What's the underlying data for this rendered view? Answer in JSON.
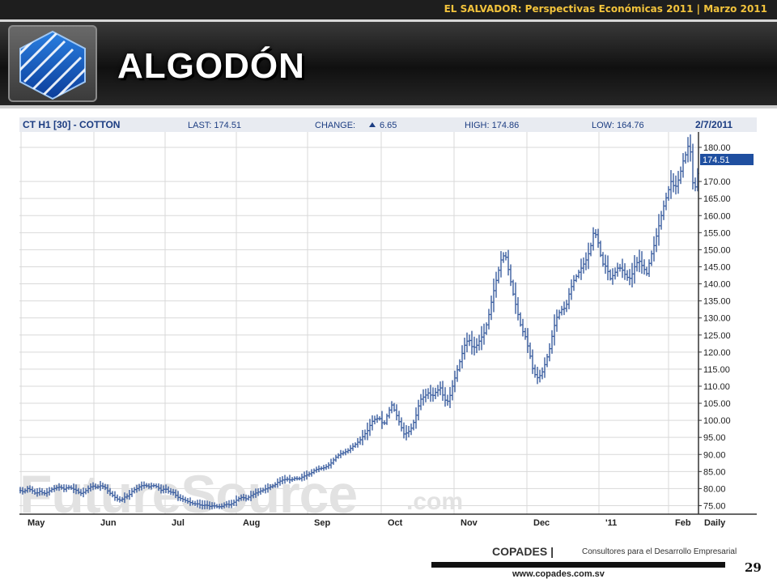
{
  "header": {
    "subtitle": "EL SALVADOR: Perspectivas Económicas 2011 | Marzo 2011"
  },
  "slide": {
    "title": "ALGODÓN",
    "page_number": "29"
  },
  "footer": {
    "brand": "COPADES |",
    "tagline": "Consultores para el Desarrollo Empresarial",
    "url": "www.copades.com.sv"
  },
  "colors": {
    "series": "#3a5d9f",
    "header_text": "#1c3d82",
    "title": "#ffffff",
    "accent": "#f2c33c"
  },
  "chart_header": {
    "symbol": "CT H1 [30] - COTTON",
    "last": "LAST: 174.51",
    "change": "CHANGE:",
    "change_value": "6.65",
    "high": "HIGH: 174.86",
    "low": "LOW: 164.76",
    "date": "2/7/2011"
  },
  "watermark": {
    "text": "FutureSource",
    "suffix": ".com"
  },
  "chart_data": {
    "type": "line",
    "title": "CT H1 [30] - COTTON",
    "interval": "Daily",
    "x_labels": [
      "May",
      "Jun",
      "Jul",
      "Aug",
      "Sep",
      "Oct",
      "Nov",
      "Dec",
      "'11",
      "Feb",
      "Daily"
    ],
    "y_ticks": [
      "180.00",
      "170.00",
      "165.00",
      "160.00",
      "155.00",
      "150.00",
      "145.00",
      "140.00",
      "135.00",
      "130.00",
      "125.00",
      "120.00",
      "115.00",
      "110.00",
      "105.00",
      "100.00",
      "95.00",
      "90.00",
      "85.00",
      "80.00",
      "75.00"
    ],
    "ylim": [
      72.5,
      184.5
    ],
    "last_price_label": "174.51",
    "grid": true,
    "series": [
      {
        "values": [
          [
            0,
            79.5
          ],
          [
            5,
            79.0
          ],
          [
            10,
            80.0
          ],
          [
            15,
            79.5
          ],
          [
            20,
            78.5
          ],
          [
            25,
            79.2
          ],
          [
            30,
            78.5
          ],
          [
            35,
            79.0
          ],
          [
            40,
            79.8
          ],
          [
            45,
            80.2
          ],
          [
            50,
            80.5
          ],
          [
            55,
            79.8
          ],
          [
            60,
            80.5
          ],
          [
            65,
            80.0
          ],
          [
            70,
            79.5
          ],
          [
            75,
            78.5
          ],
          [
            80,
            79.0
          ],
          [
            85,
            80.0
          ],
          [
            90,
            80.8
          ],
          [
            95,
            80.3
          ],
          [
            100,
            80.8
          ],
          [
            105,
            80.5
          ],
          [
            110,
            79.0
          ],
          [
            115,
            78.0
          ],
          [
            120,
            77.0
          ],
          [
            125,
            76.5
          ],
          [
            130,
            77.5
          ],
          [
            135,
            78.0
          ],
          [
            140,
            79.5
          ],
          [
            145,
            80.0
          ],
          [
            150,
            80.8
          ],
          [
            155,
            81.0
          ],
          [
            160,
            80.5
          ],
          [
            165,
            81.0
          ],
          [
            170,
            80.5
          ],
          [
            175,
            79.5
          ],
          [
            180,
            80.0
          ],
          [
            185,
            79.0
          ],
          [
            190,
            78.8
          ],
          [
            195,
            77.5
          ],
          [
            200,
            77.0
          ],
          [
            205,
            76.5
          ],
          [
            210,
            76.0
          ],
          [
            215,
            75.5
          ],
          [
            220,
            75.5
          ],
          [
            225,
            75.0
          ],
          [
            230,
            75.2
          ],
          [
            235,
            74.8
          ],
          [
            240,
            75.0
          ],
          [
            245,
            74.6
          ],
          [
            250,
            74.8
          ],
          [
            255,
            75.5
          ],
          [
            260,
            75.2
          ],
          [
            265,
            76.0
          ],
          [
            270,
            77.0
          ],
          [
            275,
            77.5
          ],
          [
            280,
            77.0
          ],
          [
            285,
            77.8
          ],
          [
            290,
            78.5
          ],
          [
            295,
            79.0
          ],
          [
            300,
            79.5
          ],
          [
            305,
            80.0
          ],
          [
            310,
            80.5
          ],
          [
            315,
            81.0
          ],
          [
            320,
            82.0
          ],
          [
            325,
            82.5
          ],
          [
            330,
            82.8
          ],
          [
            335,
            82.5
          ],
          [
            340,
            83.0
          ],
          [
            345,
            82.8
          ],
          [
            350,
            83.5
          ],
          [
            355,
            84.0
          ],
          [
            360,
            84.5
          ],
          [
            365,
            85.5
          ],
          [
            370,
            85.8
          ],
          [
            375,
            86.0
          ],
          [
            380,
            86.5
          ],
          [
            385,
            87.5
          ],
          [
            390,
            89.0
          ],
          [
            395,
            90.0
          ],
          [
            400,
            90.5
          ],
          [
            405,
            91.0
          ],
          [
            410,
            92.0
          ],
          [
            415,
            93.0
          ],
          [
            420,
            94.0
          ],
          [
            425,
            95.5
          ],
          [
            430,
            97.0
          ],
          [
            435,
            99.5
          ],
          [
            440,
            100.5
          ],
          [
            445,
            100.5
          ],
          [
            450,
            98.5
          ],
          [
            455,
            102.0
          ],
          [
            460,
            104.5
          ],
          [
            465,
            102.0
          ],
          [
            470,
            99.0
          ],
          [
            475,
            96.0
          ],
          [
            480,
            96.5
          ],
          [
            485,
            98.0
          ],
          [
            490,
            101.5
          ],
          [
            495,
            106.0
          ],
          [
            500,
            107.0
          ],
          [
            505,
            108.0
          ],
          [
            510,
            107.0
          ],
          [
            515,
            108.5
          ],
          [
            520,
            109.5
          ],
          [
            525,
            106.0
          ],
          [
            530,
            105.5
          ],
          [
            535,
            110.0
          ],
          [
            540,
            114.0
          ],
          [
            545,
            118.0
          ],
          [
            550,
            122.0
          ],
          [
            555,
            124.0
          ],
          [
            560,
            121.0
          ],
          [
            565,
            122.0
          ],
          [
            570,
            124.0
          ],
          [
            575,
            126.0
          ],
          [
            580,
            131.0
          ],
          [
            585,
            137.0
          ],
          [
            590,
            142.0
          ],
          [
            595,
            147.0
          ],
          [
            600,
            149.0
          ],
          [
            605,
            143.0
          ],
          [
            610,
            137.0
          ],
          [
            615,
            132.0
          ],
          [
            620,
            127.0
          ],
          [
            625,
            124.5
          ],
          [
            630,
            120.0
          ],
          [
            635,
            114.0
          ],
          [
            640,
            112.5
          ],
          [
            645,
            113.5
          ],
          [
            650,
            117.0
          ],
          [
            655,
            121.0
          ],
          [
            660,
            127.0
          ],
          [
            665,
            131.0
          ],
          [
            670,
            132.5
          ],
          [
            675,
            133.0
          ],
          [
            680,
            138.0
          ],
          [
            685,
            141.0
          ],
          [
            690,
            143.0
          ],
          [
            695,
            145.0
          ],
          [
            700,
            147.0
          ],
          [
            705,
            150.0
          ],
          [
            710,
            156.0
          ],
          [
            715,
            152.0
          ],
          [
            720,
            146.0
          ],
          [
            725,
            145.0
          ],
          [
            730,
            141.5
          ],
          [
            735,
            143.0
          ],
          [
            740,
            145.0
          ],
          [
            745,
            144.0
          ],
          [
            750,
            142.0
          ],
          [
            755,
            141.5
          ],
          [
            760,
            145.0
          ],
          [
            765,
            147.0
          ],
          [
            770,
            145.0
          ],
          [
            775,
            143.0
          ],
          [
            780,
            148.0
          ],
          [
            785,
            152.0
          ],
          [
            790,
            157.0
          ],
          [
            795,
            162.0
          ],
          [
            800,
            166.0
          ],
          [
            805,
            170.0
          ],
          [
            810,
            168.0
          ],
          [
            815,
            171.0
          ],
          [
            820,
            176.0
          ],
          [
            825,
            179.0
          ],
          [
            828,
            183.0
          ],
          [
            831,
            170.0
          ],
          [
            836,
            168.0
          ],
          [
            839,
            174.5
          ]
        ]
      }
    ]
  }
}
